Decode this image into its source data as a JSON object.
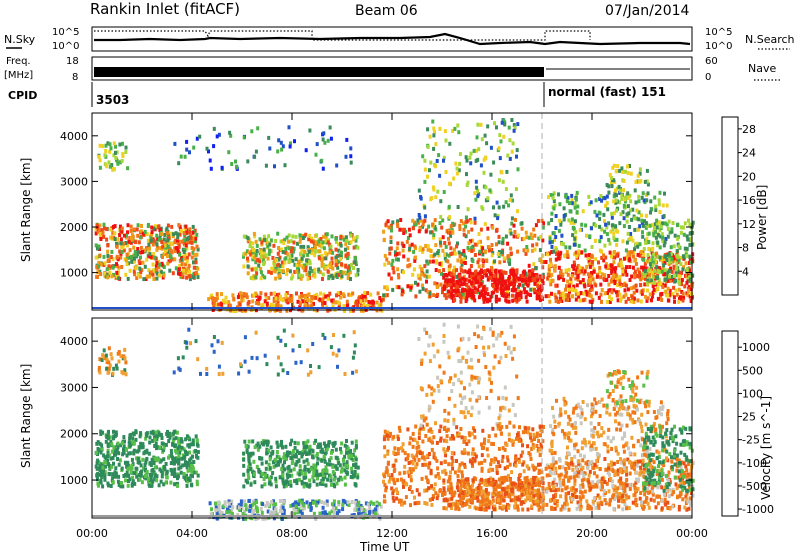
{
  "header": {
    "station": "Rankin Inlet (fitACF)",
    "beam": "Beam 06",
    "date": "07/Jan/2014"
  },
  "panels": {
    "nsky": {
      "left_label": "N.Sky",
      "ticks_left": [
        "10^5",
        "10^0"
      ],
      "ticks_right": [
        "10^5",
        "10^0"
      ],
      "right_label": "N.Search"
    },
    "freq": {
      "left_label_top": "Freq.",
      "left_label_bottom": "[MHz]",
      "ticks_left": [
        "18",
        "8"
      ],
      "ticks_right": [
        "60",
        "0"
      ],
      "right_label": "Nave"
    },
    "cpid": {
      "label": "CPID",
      "segments": [
        "3503",
        "normal (fast) 151"
      ]
    }
  },
  "chart_data": [
    {
      "type": "heatmap",
      "title": "",
      "xlabel": "",
      "ylabel": "Slant Range [km]",
      "x_ticks": [
        "00:00",
        "04:00",
        "08:00",
        "12:00",
        "16:00",
        "20:00",
        "00:00"
      ],
      "y_ticks": [
        "1000",
        "2000",
        "3000",
        "4000"
      ],
      "xlim": [
        0,
        24
      ],
      "ylim": [
        180,
        4500
      ],
      "colorbar": {
        "label": "Power [dB]",
        "ticks": [
          "4",
          "8",
          "12",
          "16",
          "20",
          "24",
          "28"
        ],
        "colors": [
          "#1020f0",
          "#2050c8",
          "#3a8a5a",
          "#48b048",
          "#a8d838",
          "#f0d020",
          "#f0a018",
          "#f07818",
          "#f04818",
          "#f01010"
        ]
      },
      "mode_change_hour": 18.0
    },
    {
      "type": "heatmap",
      "title": "",
      "xlabel": "Time UT",
      "ylabel": "Slant Range [km]",
      "x_ticks": [
        "00:00",
        "04:00",
        "08:00",
        "12:00",
        "16:00",
        "20:00",
        "00:00"
      ],
      "y_ticks": [
        "1000",
        "2000",
        "3000",
        "4000"
      ],
      "xlim": [
        0,
        24
      ],
      "ylim": [
        180,
        4500
      ],
      "colorbar": {
        "label": "Velocity [m s^-1]",
        "ticks": [
          "1000",
          "500",
          "100",
          "25",
          "-25",
          "-100",
          "-500",
          "-1000"
        ],
        "colors": [
          "#2040b8",
          "#2a64c8",
          "#2e8a5a",
          "#58c048",
          "#c8c8c0",
          "#f0a030",
          "#f07818",
          "#e85018",
          "#e82010"
        ]
      },
      "mode_change_hour": 18.0
    }
  ],
  "colors": {
    "power": [
      "#1020f0",
      "#2050c8",
      "#3a8a5a",
      "#48b048",
      "#a8d838",
      "#f0d020",
      "#f0a018",
      "#f07818",
      "#f04818",
      "#f01010"
    ],
    "velocity": [
      "#2040b8",
      "#2a64c8",
      "#2e8a5a",
      "#58c048",
      "#c8c8c0",
      "#f0a030",
      "#f07818",
      "#e85018",
      "#e82010"
    ]
  }
}
